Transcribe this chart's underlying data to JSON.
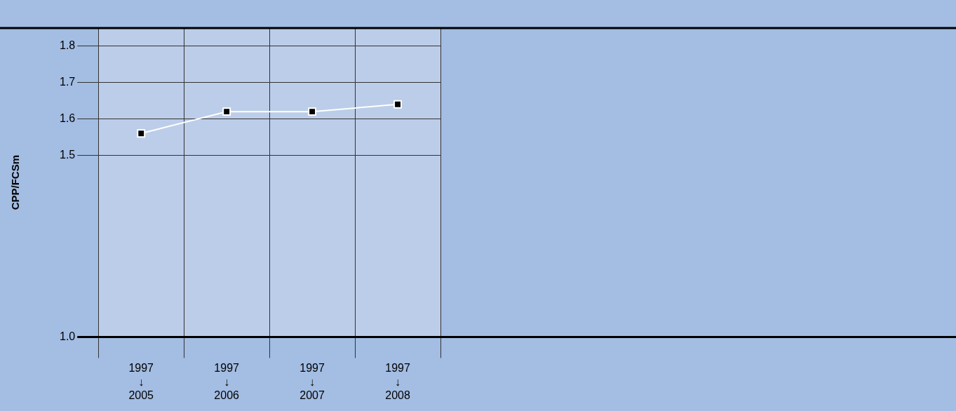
{
  "chart_data": {
    "type": "line",
    "ylabel": "CPP/FCSm",
    "categories": [
      "1997\n↓\n2005",
      "1997\n↓\n2006",
      "1997\n↓\n2007",
      "1997\n↓\n2008"
    ],
    "series": [
      {
        "color": "#ffffff",
        "values": [
          1.56,
          1.62,
          1.62,
          1.64
        ]
      }
    ],
    "ylim": [
      1.0,
      1.85
    ],
    "yticks": [
      {
        "value": 1.0,
        "label": "1.0"
      },
      {
        "value": 1.5,
        "label": "1.5"
      },
      {
        "value": 1.6,
        "label": "1.6"
      },
      {
        "value": 1.7,
        "label": "1.7"
      },
      {
        "value": 1.8,
        "label": "1.8"
      }
    ],
    "grid": true,
    "legend": false,
    "marker": "square",
    "line_style": "solid"
  }
}
